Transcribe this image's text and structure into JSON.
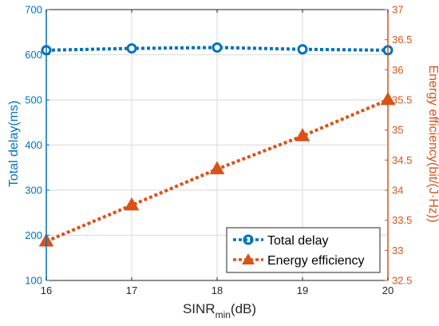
{
  "chart_data": {
    "type": "line",
    "x": [
      16,
      17,
      18,
      19,
      20
    ],
    "x_ticks": [
      "16",
      "17",
      "18",
      "19",
      "20"
    ],
    "xlim": [
      16,
      20
    ],
    "xlabel": {
      "main": "SINR",
      "sub": "min",
      "unit": "(dB)"
    },
    "y_left": {
      "label": "Total delay(ms)",
      "lim": [
        100,
        700
      ],
      "ticks": [
        "100",
        "200",
        "300",
        "400",
        "500",
        "600",
        "700"
      ],
      "color": "#0072BD"
    },
    "y_right": {
      "label": "Energy efficiency(bit/(J·Hz))",
      "lim": [
        32.5,
        37
      ],
      "ticks": [
        "32.5",
        "33",
        "33.5",
        "34",
        "34.5",
        "35",
        "35.5",
        "36",
        "36.5",
        "37"
      ],
      "color": "#D95319"
    },
    "grid": true,
    "legend_position": "bottom-right",
    "series": [
      {
        "name": "Total delay",
        "axis": "left",
        "values": [
          610,
          614,
          616,
          612,
          610
        ],
        "color": "#0072BD",
        "marker": "circle",
        "line_style": "dotted"
      },
      {
        "name": "Energy efficiency",
        "axis": "right",
        "values": [
          33.15,
          33.75,
          34.35,
          34.9,
          35.5
        ],
        "color": "#D95319",
        "marker": "triangle",
        "line_style": "dotted"
      }
    ]
  }
}
